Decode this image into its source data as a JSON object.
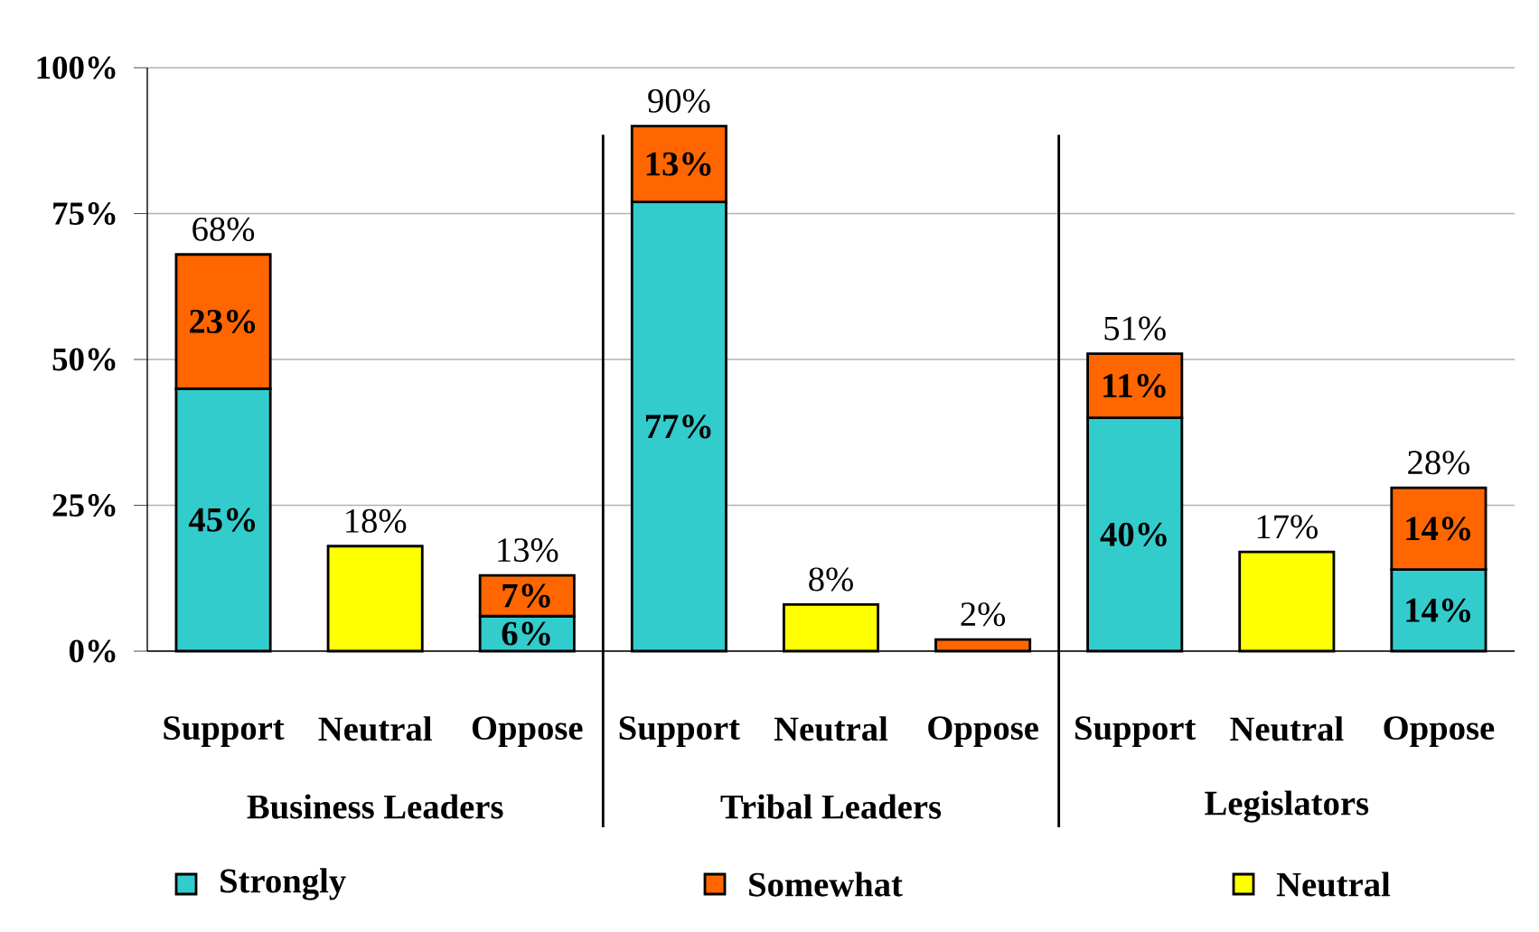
{
  "chart_data": {
    "type": "bar",
    "stacked": true,
    "categories": [
      "Support",
      "Neutral",
      "Oppose",
      "Support",
      "Neutral",
      "Oppose",
      "Support",
      "Neutral",
      "Oppose"
    ],
    "series": [
      {
        "name": "Strongly",
        "color": "#33cccc",
        "values": [
          45,
          null,
          6,
          77,
          null,
          null,
          40,
          null,
          14
        ],
        "value_labels": [
          "45%",
          null,
          "6%",
          "77%",
          null,
          null,
          "40%",
          null,
          "14%"
        ]
      },
      {
        "name": "Somewhat",
        "color": "#ff6600",
        "values": [
          23,
          null,
          7,
          13,
          null,
          2,
          11,
          null,
          14
        ],
        "value_labels": [
          "23%",
          null,
          "7%",
          "13%",
          null,
          null,
          "11%",
          null,
          "14%"
        ]
      },
      {
        "name": "Neutral",
        "color": "#ffff00",
        "values": [
          null,
          18,
          null,
          null,
          8,
          null,
          null,
          17,
          null
        ]
      }
    ],
    "totals": [
      "68%",
      "18%",
      "13%",
      "90%",
      "8%",
      "2%",
      "51%",
      "17%",
      "28%"
    ],
    "annotations": [
      "Business Leaders",
      "Tribal Leaders",
      "Legislators"
    ],
    "ylim": [
      0,
      100
    ],
    "yticks": [
      {
        "value": 0,
        "label": "0%"
      },
      {
        "value": 25,
        "label": "25%"
      },
      {
        "value": 50,
        "label": "50%"
      },
      {
        "value": 75,
        "label": "75%"
      },
      {
        "value": 100,
        "label": "100%"
      }
    ],
    "grid": "y",
    "legend": "bottom"
  }
}
